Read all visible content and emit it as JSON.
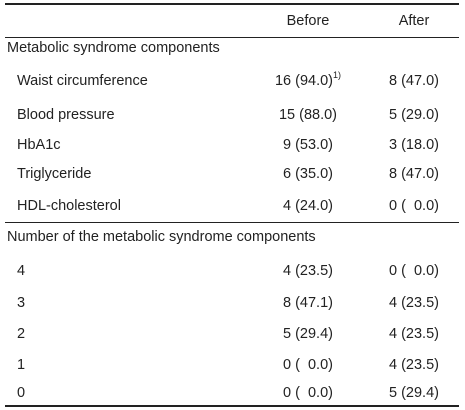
{
  "table": {
    "headers": {
      "col1": "",
      "before": "Before",
      "after": "After"
    },
    "sections": [
      {
        "title": "Metabolic syndrome components",
        "rows": [
          {
            "label": "Waist circumference",
            "before": "16 (94.0)",
            "before_note": "1)",
            "after": "8 (47.0)"
          },
          {
            "label": "Blood pressure",
            "before": "15 (88.0)",
            "after": "5 (29.0)"
          },
          {
            "label": "HbA1c",
            "before": "9 (53.0)",
            "after": "3 (18.0)"
          },
          {
            "label": "Triglyceride",
            "before": "6 (35.0)",
            "after": "8 (47.0)"
          },
          {
            "label": "HDL-cholesterol",
            "before": "4 (24.0)",
            "after": "0 (  0.0)"
          }
        ]
      },
      {
        "title": "Number of the metabolic syndrome components",
        "rows": [
          {
            "label": "4",
            "before": "4 (23.5)",
            "after": "0 (  0.0)"
          },
          {
            "label": "3",
            "before": "8 (47.1)",
            "after": "4 (23.5)"
          },
          {
            "label": "2",
            "before": "5 (29.4)",
            "after": "4 (23.5)"
          },
          {
            "label": "1",
            "before": "0 (  0.0)",
            "after": "4 (23.5)"
          },
          {
            "label": "0",
            "before": "0 (  0.0)",
            "after": "5 (29.4)"
          }
        ]
      }
    ]
  }
}
